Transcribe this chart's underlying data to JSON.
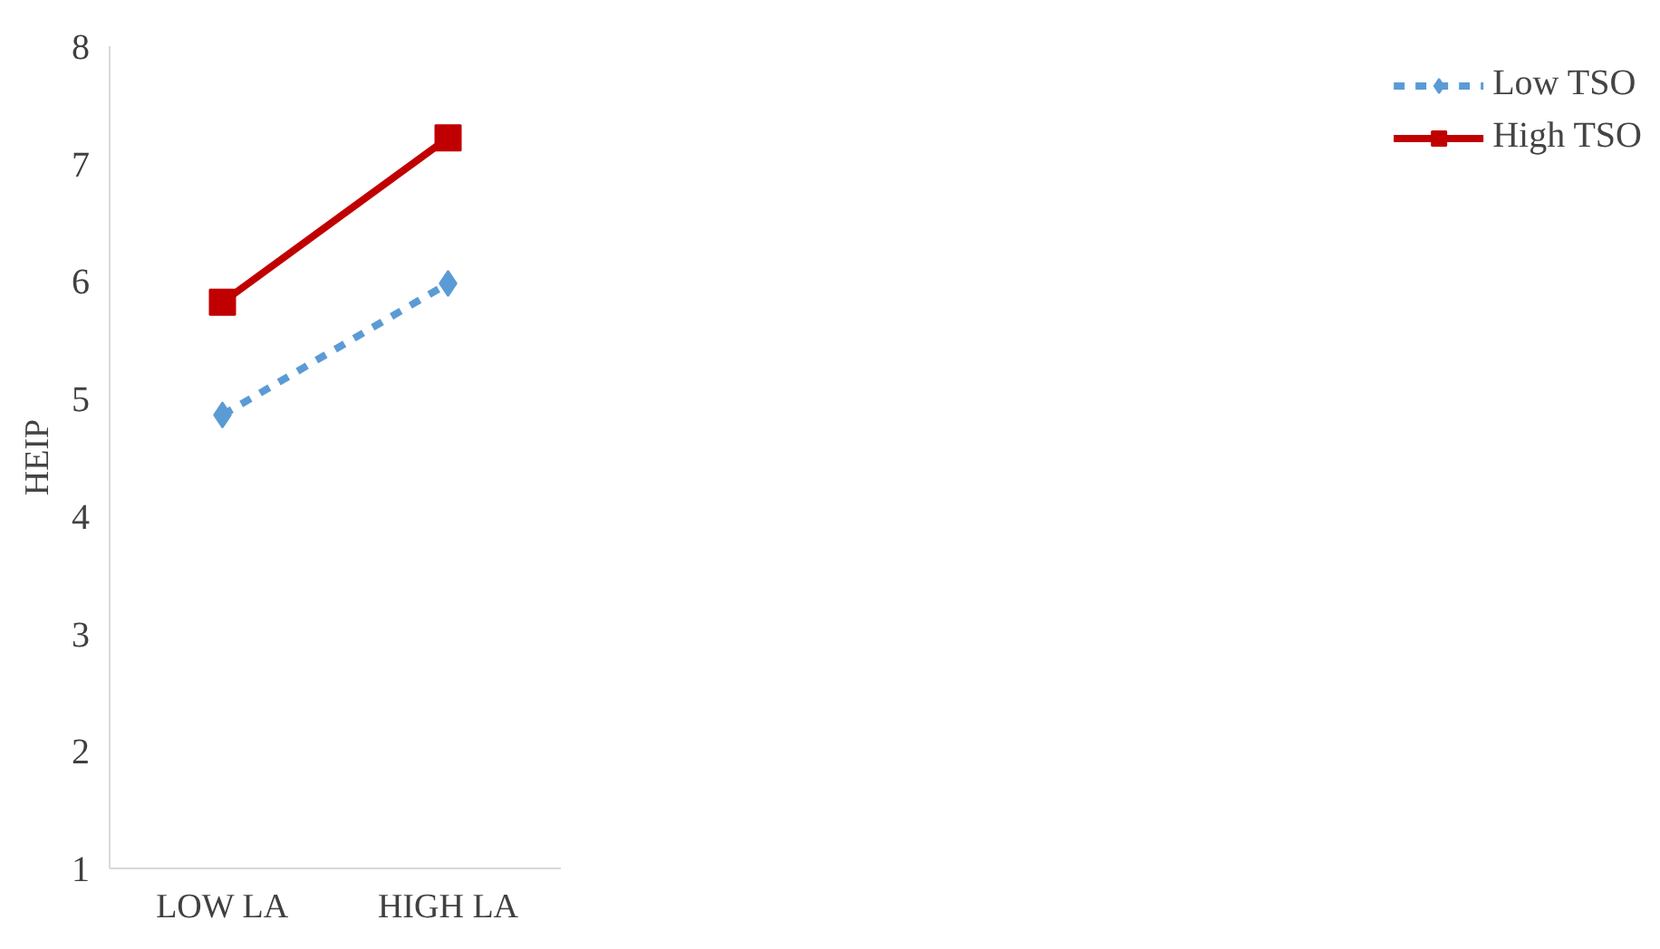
{
  "chart_data": {
    "type": "line",
    "ylabel": "HEIP",
    "categories": [
      "LOW LA",
      "HIGH LA"
    ],
    "series": [
      {
        "name": "Low TSO",
        "color": "#5b9bd5",
        "values": [
          4.86,
          5.98
        ],
        "line_style": "dashed",
        "marker": "diamond"
      },
      {
        "name": "High TSO",
        "color": "#c00000",
        "values": [
          5.82,
          7.22
        ],
        "line_style": "solid",
        "marker": "square"
      }
    ],
    "ylim": [
      1,
      8
    ],
    "yticks": [
      1,
      2,
      3,
      4,
      5,
      6,
      7,
      8
    ],
    "grid": false,
    "legend": "right"
  }
}
